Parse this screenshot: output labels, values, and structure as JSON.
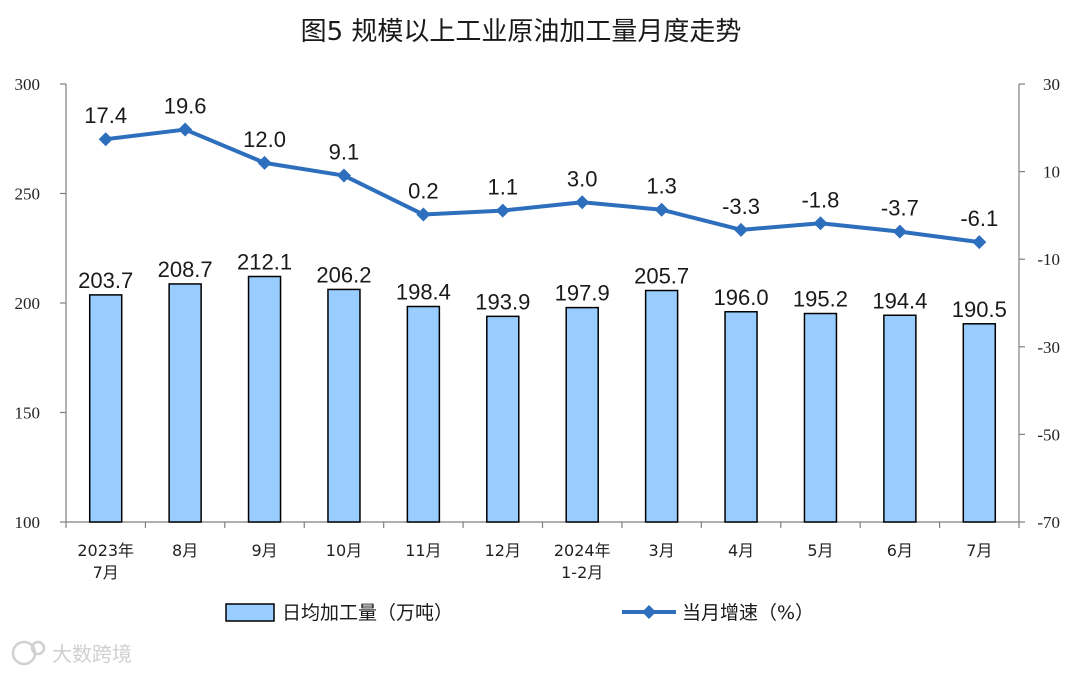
{
  "chart_data": {
    "type": "bar",
    "title": "图5  规模以上工业原油加工量月度走势",
    "categories": [
      [
        "2023年",
        "7月"
      ],
      [
        "8月"
      ],
      [
        "9月"
      ],
      [
        "10月"
      ],
      [
        "11月"
      ],
      [
        "12月"
      ],
      [
        "2024年",
        "1-2月"
      ],
      [
        "3月"
      ],
      [
        "4月"
      ],
      [
        "5月"
      ],
      [
        "6月"
      ],
      [
        "7月"
      ]
    ],
    "series": [
      {
        "name": "日均加工量（万吨）",
        "type": "bar",
        "axis": "left",
        "color": "#99ccff",
        "values": [
          203.7,
          208.7,
          212.1,
          206.2,
          198.4,
          193.9,
          197.9,
          205.7,
          196.0,
          195.2,
          194.4,
          190.5
        ],
        "labels": [
          "203.7",
          "208.7",
          "212.1",
          "206.2",
          "198.4",
          "193.9",
          "197.9",
          "205.7",
          "196.0",
          "195.2",
          "194.4",
          "190.5"
        ]
      },
      {
        "name": "当月增速（%）",
        "type": "line",
        "axis": "right",
        "color": "#2e6fbd",
        "values": [
          17.4,
          19.6,
          12.0,
          9.1,
          0.2,
          1.1,
          3.0,
          1.3,
          -3.3,
          -1.8,
          -3.7,
          -6.1
        ],
        "labels": [
          "17.4",
          "19.6",
          "12.0",
          "9.1",
          "0.2",
          "1.1",
          "3.0",
          "1.3",
          "-3.3",
          "-1.8",
          "-3.7",
          "-6.1"
        ]
      }
    ],
    "y_left": {
      "ylim": [
        100,
        300
      ],
      "ticks": [
        "100",
        "150",
        "200",
        "250",
        "300"
      ]
    },
    "y_right": {
      "ylim": [
        -70,
        30
      ],
      "ticks": [
        "-70",
        "-50",
        "-30",
        "-10",
        "10",
        "30"
      ]
    },
    "grid": false,
    "legend": "bottom"
  },
  "watermark": "大数跨境"
}
